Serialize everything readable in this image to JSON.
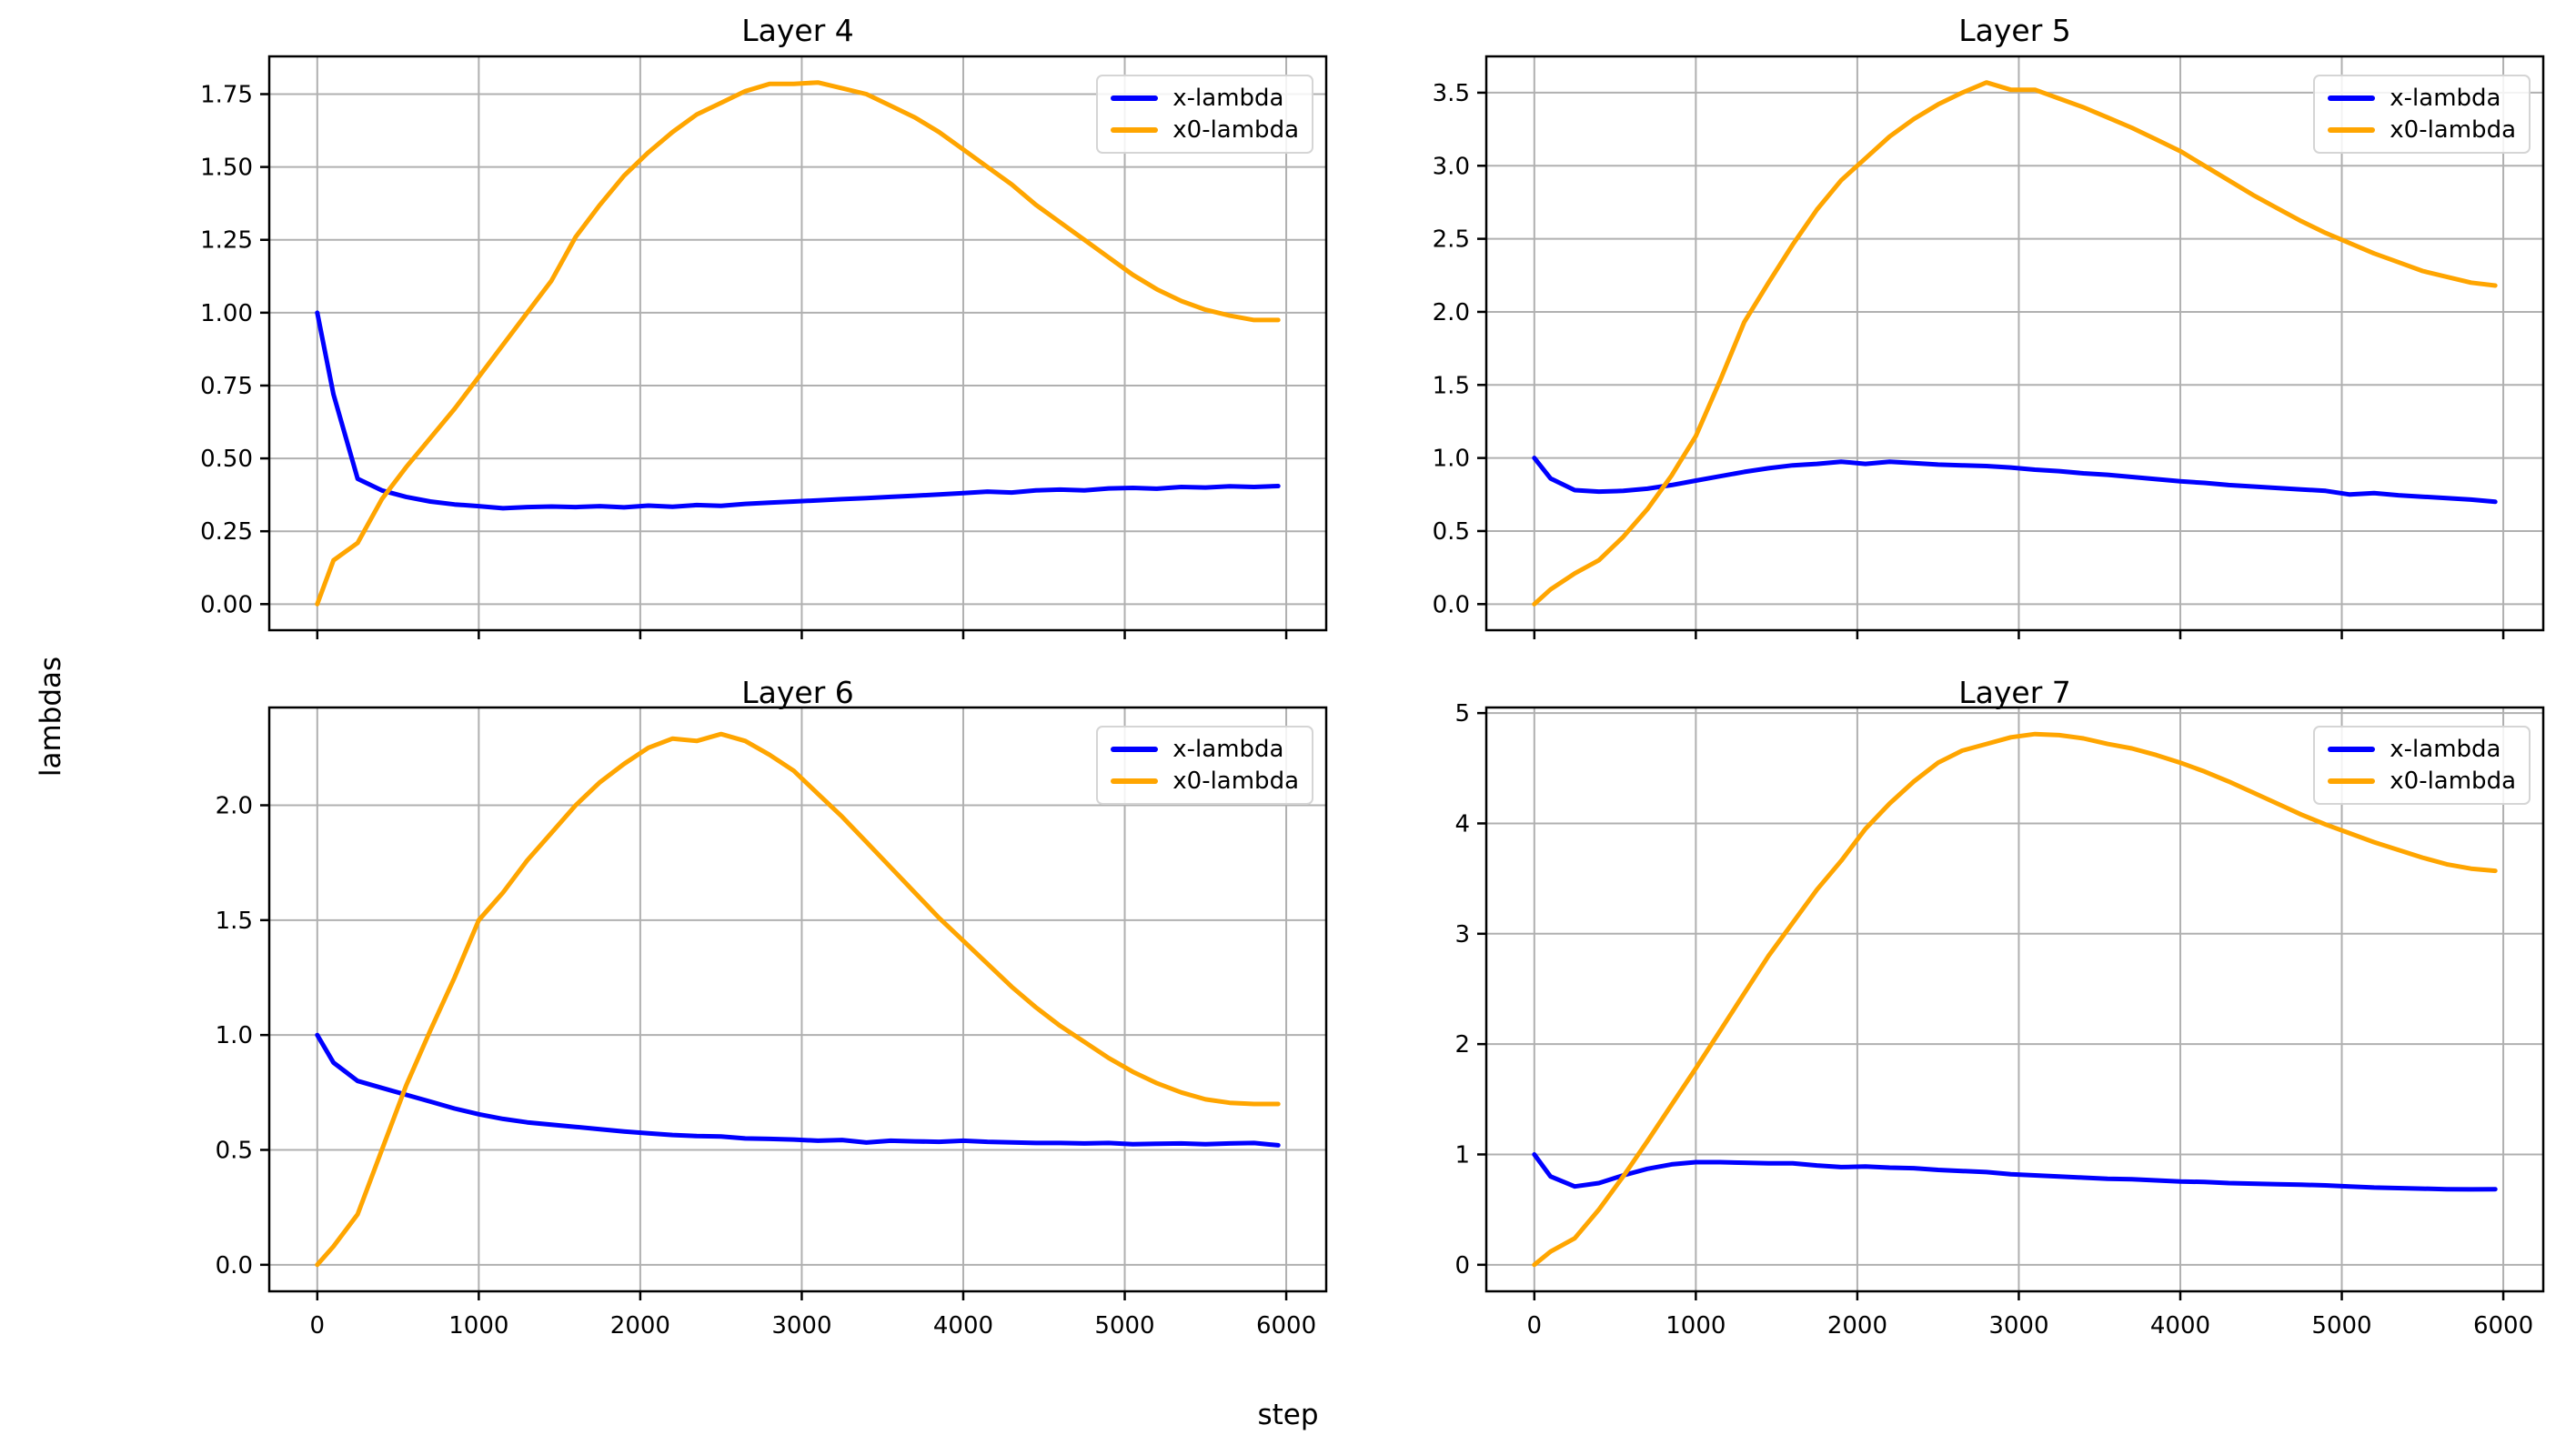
{
  "figure": {
    "xlabel": "step",
    "ylabel": "lambdas",
    "background": "#ffffff"
  },
  "style": {
    "blue": "#0000ff",
    "orange": "#ffa500",
    "grid_color": "#b0b0b0",
    "spine_color": "#000000",
    "tick_label_color": "#000000",
    "legend_border": "#d5d5d5"
  },
  "legend": {
    "entries": [
      {
        "label": "x-lambda",
        "color_key": "blue",
        "icon": "line-swatch-blue"
      },
      {
        "label": "x0-lambda",
        "color_key": "orange",
        "icon": "line-swatch-orange"
      }
    ]
  },
  "chart_data": {
    "type": "line",
    "xlabel": "step",
    "ylabel": "lambdas",
    "grid": true,
    "legend_position": "upper right",
    "xlim": [
      -297.5,
      6247.5
    ],
    "xticks": {
      "values": [
        0,
        1000,
        2000,
        3000,
        4000,
        5000,
        6000
      ],
      "labels": [
        "0",
        "1000",
        "2000",
        "3000",
        "4000",
        "5000",
        "6000"
      ]
    },
    "x": [
      0,
      100,
      250,
      400,
      550,
      700,
      850,
      1000,
      1150,
      1300,
      1450,
      1600,
      1750,
      1900,
      2050,
      2200,
      2350,
      2500,
      2650,
      2800,
      2950,
      3100,
      3250,
      3400,
      3550,
      3700,
      3850,
      4000,
      4150,
      4300,
      4450,
      4600,
      4750,
      4900,
      5050,
      5200,
      5350,
      5500,
      5650,
      5800,
      5950
    ],
    "series_names": [
      "x-lambda",
      "x0-lambda"
    ],
    "subplots": [
      {
        "title": "Layer 4",
        "ylim": [
          -0.0895,
          1.8795
        ],
        "yticks": {
          "values": [
            0.0,
            0.25,
            0.5,
            0.75,
            1.0,
            1.25,
            1.5,
            1.75
          ],
          "labels": [
            "0.00",
            "0.25",
            "0.50",
            "0.75",
            "1.00",
            "1.25",
            "1.50",
            "1.75"
          ]
        },
        "show_xtick_labels": false,
        "series": {
          "x_lambda": [
            1.0,
            0.72,
            0.43,
            0.39,
            0.368,
            0.352,
            0.342,
            0.336,
            0.329,
            0.333,
            0.335,
            0.333,
            0.336,
            0.332,
            0.338,
            0.334,
            0.34,
            0.337,
            0.344,
            0.348,
            0.352,
            0.356,
            0.36,
            0.364,
            0.368,
            0.372,
            0.376,
            0.381,
            0.386,
            0.383,
            0.39,
            0.393,
            0.39,
            0.397,
            0.399,
            0.396,
            0.402,
            0.4,
            0.404,
            0.402,
            0.405
          ],
          "x0_lambda": [
            0.0,
            0.15,
            0.21,
            0.36,
            0.47,
            0.57,
            0.67,
            0.78,
            0.89,
            1.0,
            1.11,
            1.26,
            1.37,
            1.47,
            1.55,
            1.62,
            1.68,
            1.72,
            1.76,
            1.785,
            1.785,
            1.79,
            1.77,
            1.75,
            1.71,
            1.67,
            1.62,
            1.56,
            1.5,
            1.44,
            1.37,
            1.31,
            1.25,
            1.19,
            1.13,
            1.08,
            1.04,
            1.01,
            0.99,
            0.975,
            0.975
          ]
        }
      },
      {
        "title": "Layer 5",
        "ylim": [
          -0.1785,
          3.7485
        ],
        "yticks": {
          "values": [
            0.0,
            0.5,
            1.0,
            1.5,
            2.0,
            2.5,
            3.0,
            3.5
          ],
          "labels": [
            "0.0",
            "0.5",
            "1.0",
            "1.5",
            "2.0",
            "2.5",
            "3.0",
            "3.5"
          ]
        },
        "show_xtick_labels": false,
        "series": {
          "x_lambda": [
            1.0,
            0.86,
            0.78,
            0.77,
            0.775,
            0.79,
            0.815,
            0.845,
            0.875,
            0.905,
            0.93,
            0.95,
            0.96,
            0.975,
            0.96,
            0.975,
            0.965,
            0.955,
            0.95,
            0.945,
            0.935,
            0.92,
            0.91,
            0.895,
            0.885,
            0.87,
            0.855,
            0.84,
            0.83,
            0.815,
            0.805,
            0.795,
            0.785,
            0.775,
            0.75,
            0.76,
            0.745,
            0.735,
            0.725,
            0.715,
            0.7
          ],
          "x0_lambda": [
            0.0,
            0.1,
            0.21,
            0.3,
            0.46,
            0.65,
            0.88,
            1.15,
            1.53,
            1.93,
            2.2,
            2.46,
            2.7,
            2.9,
            3.05,
            3.2,
            3.32,
            3.42,
            3.5,
            3.57,
            3.52,
            3.52,
            3.46,
            3.4,
            3.33,
            3.26,
            3.18,
            3.1,
            3.0,
            2.9,
            2.8,
            2.71,
            2.62,
            2.54,
            2.47,
            2.4,
            2.34,
            2.28,
            2.24,
            2.2,
            2.18
          ]
        }
      },
      {
        "title": "Layer 6",
        "ylim": [
          -0.1155,
          2.4255
        ],
        "yticks": {
          "values": [
            0.0,
            0.5,
            1.0,
            1.5,
            2.0
          ],
          "labels": [
            "0.0",
            "0.5",
            "1.0",
            "1.5",
            "2.0"
          ]
        },
        "show_xtick_labels": true,
        "series": {
          "x_lambda": [
            1.0,
            0.88,
            0.8,
            0.77,
            0.74,
            0.71,
            0.68,
            0.655,
            0.635,
            0.62,
            0.61,
            0.6,
            0.59,
            0.58,
            0.572,
            0.565,
            0.56,
            0.558,
            0.55,
            0.548,
            0.545,
            0.54,
            0.543,
            0.532,
            0.54,
            0.537,
            0.535,
            0.54,
            0.535,
            0.533,
            0.53,
            0.53,
            0.528,
            0.53,
            0.525,
            0.527,
            0.528,
            0.525,
            0.528,
            0.53,
            0.52
          ],
          "x0_lambda": [
            0.0,
            0.08,
            0.22,
            0.5,
            0.78,
            1.02,
            1.25,
            1.5,
            1.62,
            1.76,
            1.88,
            2.0,
            2.1,
            2.18,
            2.25,
            2.29,
            2.28,
            2.31,
            2.28,
            2.22,
            2.15,
            2.05,
            1.95,
            1.84,
            1.73,
            1.62,
            1.51,
            1.41,
            1.31,
            1.21,
            1.12,
            1.04,
            0.97,
            0.9,
            0.84,
            0.79,
            0.75,
            0.72,
            0.705,
            0.7,
            0.7
          ]
        }
      },
      {
        "title": "Layer 7",
        "ylim": [
          -0.2405,
          5.0505
        ],
        "yticks": {
          "values": [
            0,
            1,
            2,
            3,
            4,
            5
          ],
          "labels": [
            "0",
            "1",
            "2",
            "3",
            "4",
            "5"
          ]
        },
        "show_xtick_labels": true,
        "series": {
          "x_lambda": [
            1.0,
            0.8,
            0.71,
            0.74,
            0.81,
            0.87,
            0.91,
            0.93,
            0.93,
            0.925,
            0.92,
            0.92,
            0.9,
            0.885,
            0.89,
            0.88,
            0.875,
            0.86,
            0.85,
            0.84,
            0.82,
            0.81,
            0.8,
            0.79,
            0.78,
            0.775,
            0.765,
            0.755,
            0.75,
            0.74,
            0.735,
            0.73,
            0.725,
            0.72,
            0.71,
            0.7,
            0.695,
            0.69,
            0.685,
            0.683,
            0.685
          ],
          "x0_lambda": [
            0.0,
            0.12,
            0.24,
            0.5,
            0.8,
            1.12,
            1.45,
            1.78,
            2.12,
            2.46,
            2.8,
            3.1,
            3.4,
            3.66,
            3.95,
            4.18,
            4.38,
            4.55,
            4.66,
            4.72,
            4.78,
            4.81,
            4.8,
            4.77,
            4.72,
            4.68,
            4.62,
            4.55,
            4.47,
            4.38,
            4.28,
            4.18,
            4.08,
            3.99,
            3.91,
            3.83,
            3.76,
            3.69,
            3.63,
            3.59,
            3.57
          ]
        }
      }
    ]
  }
}
